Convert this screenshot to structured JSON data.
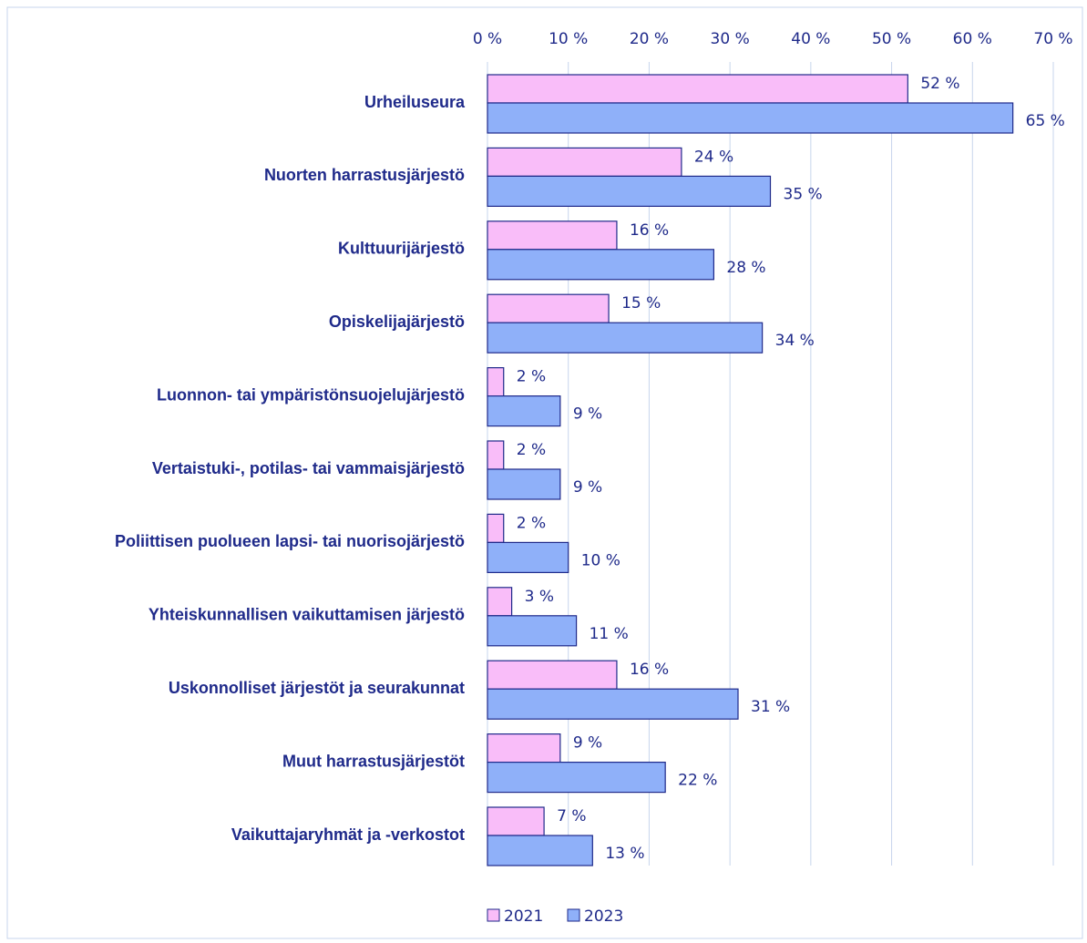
{
  "chart_data": {
    "type": "bar",
    "orientation": "horizontal",
    "categories": [
      "Urheiluseura",
      "Nuorten harrastusjärjestö",
      "Kulttuurijärjestö",
      "Opiskelijajärjestö",
      "Luonnon- tai ympäristönsuojelujärjestö",
      "Vertaistuki-, potilas- tai vammaisjärjestö",
      "Poliittisen puolueen lapsi- tai nuorisojärjestö",
      "Yhteiskunnallisen vaikuttamisen järjestö",
      "Uskonnolliset järjestöt ja seurakunnat",
      "Muut harrastusjärjestöt",
      "Vaikuttajaryhmät ja -verkostot"
    ],
    "series": [
      {
        "name": "2021",
        "color": "#f9bdf9",
        "values": [
          52,
          24,
          16,
          15,
          2,
          2,
          2,
          3,
          16,
          9,
          7
        ],
        "value_labels": [
          "52 %",
          "24 %",
          "16 %",
          "15 %",
          "2 %",
          "2 %",
          "2 %",
          "3 %",
          "16 %",
          "9 %",
          "7 %"
        ]
      },
      {
        "name": "2023",
        "color": "#8fb0f9",
        "values": [
          65,
          35,
          28,
          34,
          9,
          9,
          10,
          11,
          31,
          22,
          13
        ],
        "value_labels": [
          "65 %",
          "35 %",
          "28 %",
          "34 %",
          "9 %",
          "9 %",
          "10 %",
          "11 %",
          "31 %",
          "22 %",
          "13 %"
        ]
      }
    ],
    "xlim": [
      0,
      70
    ],
    "xticks": [
      {
        "value": 0,
        "label": "0 %"
      },
      {
        "value": 10,
        "label": "10 %"
      },
      {
        "value": 20,
        "label": "20 %"
      },
      {
        "value": 30,
        "label": "30 %"
      },
      {
        "value": 40,
        "label": "40 %"
      },
      {
        "value": 50,
        "label": "50 %"
      },
      {
        "value": 60,
        "label": "60 %"
      },
      {
        "value": 70,
        "label": "70 %"
      }
    ],
    "grid": true,
    "legend": "bottom"
  }
}
